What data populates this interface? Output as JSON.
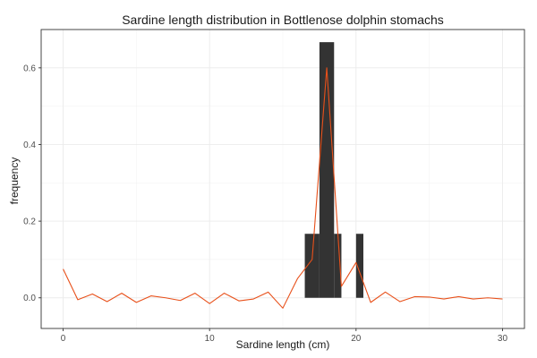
{
  "chart_data": {
    "type": "bar",
    "title": "Sardine length distribution in Bottlenose dolphin stomachs",
    "xlabel": "Sardine length (cm)",
    "ylabel": "frequency",
    "xlim": [
      -1.5,
      31.5
    ],
    "ylim": [
      -0.08,
      0.7
    ],
    "x_ticks": [
      0,
      10,
      20,
      30
    ],
    "y_ticks": [
      0.0,
      0.2,
      0.4,
      0.6
    ],
    "x_tick_labels": [
      "0",
      "10",
      "20",
      "30"
    ],
    "y_tick_labels": [
      "0.0",
      "0.2",
      "0.4",
      "0.6"
    ],
    "grid": true,
    "bar_color": "#333333",
    "line_color": "#e8501a",
    "bars": [
      {
        "x_start": 16.5,
        "x_end": 17.5,
        "value": 0.167
      },
      {
        "x_start": 17.5,
        "x_end": 18.5,
        "value": 0.667
      },
      {
        "x_start": 18.5,
        "x_end": 19.0,
        "value": 0.167
      },
      {
        "x_start": 20.0,
        "x_end": 20.5,
        "value": 0.167
      }
    ],
    "series": [
      {
        "type": "line",
        "x": [
          0,
          1,
          2,
          3,
          4,
          5,
          6,
          7,
          8,
          9,
          10,
          11,
          12,
          13,
          14,
          15,
          16,
          17,
          18,
          19,
          20,
          21,
          22,
          23,
          24,
          25,
          26,
          27,
          28,
          29,
          30
        ],
        "y": [
          0.075,
          -0.005,
          0.01,
          -0.01,
          0.012,
          -0.012,
          0.005,
          0.0,
          -0.007,
          0.012,
          -0.015,
          0.012,
          -0.008,
          -0.003,
          0.015,
          -0.027,
          0.05,
          0.1,
          0.6,
          0.03,
          0.092,
          -0.012,
          0.015,
          -0.01,
          0.003,
          0.002,
          -0.003,
          0.003,
          -0.003,
          0.0,
          -0.003
        ]
      }
    ]
  }
}
